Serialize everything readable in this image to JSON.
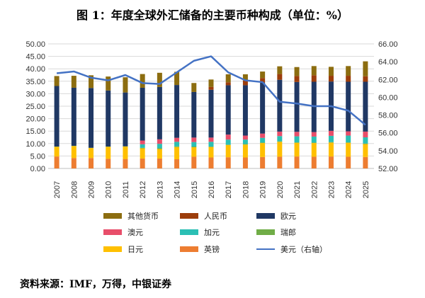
{
  "title": "图 1：年度全球外汇储备的主要币种构成（单位：%）",
  "source": "资料来源：IMF，万得，中银证券",
  "chart_data": {
    "type": "bar",
    "stacked": true,
    "categories": [
      "2007",
      "2008",
      "2009",
      "2010",
      "2011",
      "2012",
      "2013",
      "2014",
      "2015",
      "2016",
      "2017",
      "2018",
      "2019",
      "2020",
      "2021",
      "2022",
      "2023",
      "2024",
      "2025"
    ],
    "y_left": {
      "min": 0,
      "max": 50,
      "step": 5,
      "tick_labels": [
        "0.00",
        "5.00",
        "10.00",
        "15.00",
        "20.00",
        "25.00",
        "30.00",
        "35.00",
        "40.00",
        "45.00",
        "50.00"
      ]
    },
    "y_right": {
      "min": 52,
      "max": 66,
      "step": 2,
      "tick_labels": [
        "52.00",
        "54.00",
        "56.00",
        "58.00",
        "60.00",
        "62.00",
        "64.00",
        "66.00"
      ]
    },
    "series": [
      {
        "name": "英镑",
        "color": "#ED7D31",
        "values": [
          4.8,
          4.2,
          4.2,
          3.9,
          3.8,
          4.0,
          4.0,
          3.7,
          4.7,
          4.4,
          4.5,
          4.4,
          4.6,
          4.7,
          4.8,
          4.7,
          4.8,
          4.7,
          4.6
        ]
      },
      {
        "name": "日元",
        "color": "#FFC000",
        "values": [
          3.9,
          4.8,
          4.0,
          4.8,
          5.0,
          4.1,
          3.8,
          4.9,
          3.8,
          4.2,
          4.9,
          5.2,
          5.6,
          6.0,
          5.5,
          5.5,
          5.6,
          5.6,
          5.2
        ]
      },
      {
        "name": "瑞郎",
        "color": "#70AD47",
        "values": [
          0.1,
          0.1,
          0.1,
          0.1,
          0.1,
          0.2,
          0.3,
          0.3,
          0.3,
          0.2,
          0.2,
          0.2,
          0.2,
          0.2,
          0.2,
          0.2,
          0.2,
          0.2,
          0.2
        ]
      },
      {
        "name": "加元",
        "color": "#2BBFB4",
        "values": [
          0,
          0,
          0,
          0,
          0,
          1.4,
          1.8,
          1.8,
          1.8,
          1.9,
          2.0,
          1.8,
          1.9,
          2.1,
          2.4,
          2.4,
          2.5,
          2.7,
          2.5
        ]
      },
      {
        "name": "澳元",
        "color": "#E84E6A",
        "values": [
          0,
          0,
          0,
          0,
          0,
          1.5,
          1.8,
          1.6,
          1.8,
          1.7,
          2.0,
          1.6,
          1.7,
          1.8,
          1.8,
          1.8,
          2.0,
          1.7,
          2.3
        ]
      },
      {
        "name": "欧元",
        "color": "#203864",
        "values": [
          24.3,
          23.3,
          24.0,
          22.5,
          21.6,
          21.2,
          21.0,
          21.2,
          18.3,
          19.2,
          19.8,
          20.2,
          20.5,
          20.8,
          20.0,
          20.2,
          19.8,
          19.9,
          20.0
        ]
      },
      {
        "name": "人民币",
        "color": "#9C3D0B",
        "values": [
          0,
          0,
          0,
          0,
          0,
          0,
          0,
          0,
          0,
          1.1,
          1.2,
          1.9,
          1.8,
          2.3,
          2.4,
          2.6,
          2.3,
          2.4,
          2.2
        ]
      },
      {
        "name": "其他货币",
        "color": "#8C6D10",
        "values": [
          4.0,
          4.8,
          5.1,
          5.6,
          6.1,
          5.5,
          5.7,
          5.3,
          3.6,
          3.0,
          3.2,
          2.5,
          2.6,
          3.1,
          3.6,
          3.7,
          3.6,
          3.9,
          6.0
        ]
      }
    ],
    "line": {
      "name": "美元（右轴）",
      "color": "#4472C4",
      "axis": "right",
      "values": [
        62.7,
        62.9,
        62.2,
        61.9,
        62.5,
        61.6,
        61.5,
        62.8,
        64.1,
        64.6,
        62.8,
        61.9,
        61.7,
        59.5,
        59.3,
        59.0,
        59.0,
        58.5,
        56.9
      ]
    },
    "legend": {
      "placement": "bottom",
      "items": [
        {
          "label": "其他货币",
          "color": "#8C6D10",
          "kind": "bar"
        },
        {
          "label": "人民币",
          "color": "#9C3D0B",
          "kind": "bar"
        },
        {
          "label": "欧元",
          "color": "#203864",
          "kind": "bar"
        },
        {
          "label": "澳元",
          "color": "#E84E6A",
          "kind": "bar"
        },
        {
          "label": "加元",
          "color": "#2BBFB4",
          "kind": "bar"
        },
        {
          "label": "瑞郎",
          "color": "#70AD47",
          "kind": "bar"
        },
        {
          "label": "日元",
          "color": "#FFC000",
          "kind": "bar"
        },
        {
          "label": "英镑",
          "color": "#ED7D31",
          "kind": "bar"
        },
        {
          "label": "美元（右轴）",
          "color": "#4472C4",
          "kind": "line"
        }
      ]
    }
  }
}
